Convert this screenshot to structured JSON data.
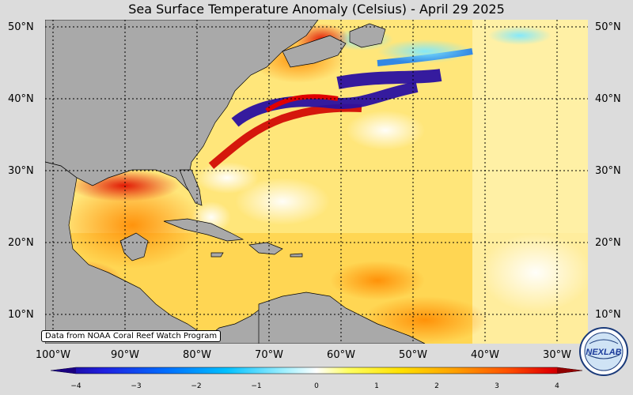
{
  "title": "Sea Surface Temperature Anomaly (Celsius) - April 29 2025",
  "lat_labels": [
    "50°N",
    "40°N",
    "30°N",
    "20°N",
    "10°N"
  ],
  "lon_labels": [
    "100°W",
    "90°W",
    "80°W",
    "70°W",
    "60°W",
    "50°W",
    "40°W",
    "30°W"
  ],
  "credit": "Data from NOAA Coral Reef Watch Program",
  "logo_text": "NEXLAB",
  "colorbar": {
    "ticks": [
      "−4",
      "−3",
      "−2",
      "−1",
      "0",
      "1",
      "2",
      "3",
      "4"
    ],
    "min": -4,
    "max": 4,
    "colors": [
      "#1a0080",
      "#2020e0",
      "#0070ff",
      "#00c0ff",
      "#a0f0ff",
      "#ffffff",
      "#ffff60",
      "#ffe000",
      "#ffa000",
      "#ff5000",
      "#e00000",
      "#900000"
    ]
  },
  "colors": {
    "land": "#a9a9a9",
    "ocean_base": "#ffe98a",
    "background": "#dcdcdc"
  }
}
